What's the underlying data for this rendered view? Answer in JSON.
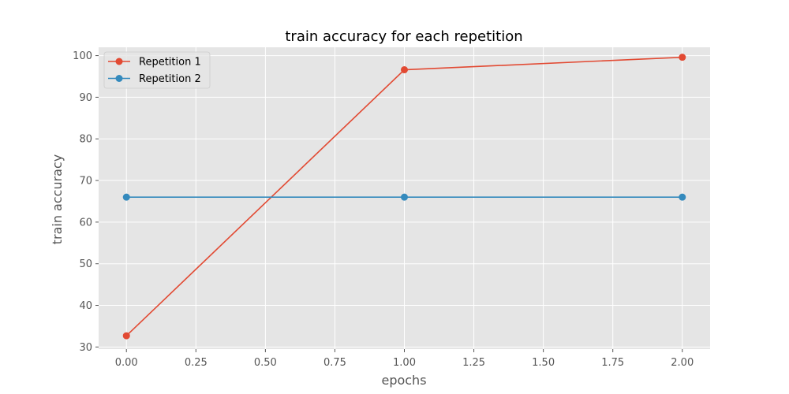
{
  "chart_data": {
    "type": "line",
    "title": "train accuracy for each repetition",
    "xlabel": "epochs",
    "ylabel": "train accuracy",
    "x": [
      0.0,
      1.0,
      2.0
    ],
    "xlim": [
      -0.1,
      2.1
    ],
    "ylim": [
      29.5,
      102.0
    ],
    "xticks": [
      "0.00",
      "0.25",
      "0.50",
      "0.75",
      "1.00",
      "1.25",
      "1.50",
      "1.75",
      "2.00"
    ],
    "yticks": [
      "30",
      "40",
      "50",
      "60",
      "70",
      "80",
      "90",
      "100"
    ],
    "grid": true,
    "legend_position": "top-left",
    "series": [
      {
        "name": "Repetition 1",
        "color": "#E24A33",
        "values": [
          32.7,
          96.6,
          99.6
        ]
      },
      {
        "name": "Repetition 2",
        "color": "#348ABD",
        "values": [
          66.0,
          66.0,
          66.0
        ]
      }
    ],
    "background_color": "#E5E5E5",
    "grid_color": "#FFFFFF"
  }
}
